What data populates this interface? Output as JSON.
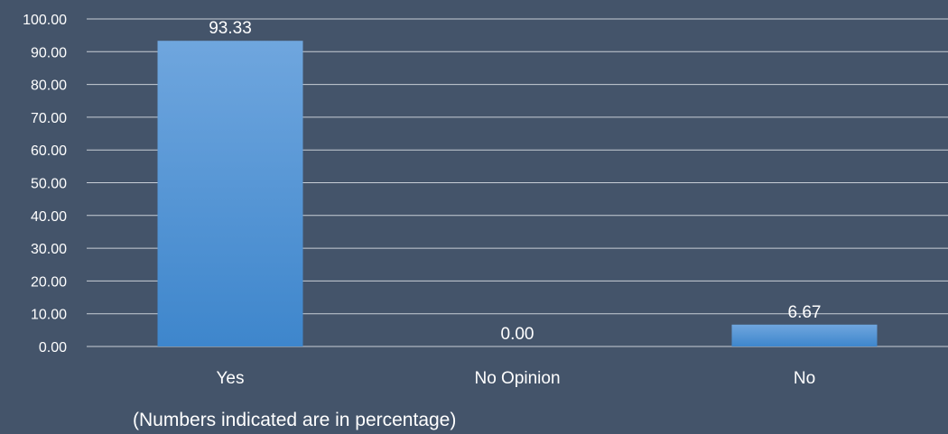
{
  "chart_data": {
    "type": "bar",
    "categories": [
      "Yes",
      "No Opinion",
      "No"
    ],
    "values": [
      93.33,
      0.0,
      6.67
    ],
    "data_labels": [
      "93.33",
      "0.00",
      "6.67"
    ],
    "ylim": [
      0,
      100
    ],
    "yticks": [
      "0.00",
      "10.00",
      "20.00",
      "30.00",
      "40.00",
      "50.00",
      "60.00",
      "70.00",
      "80.00",
      "90.00",
      "100.00"
    ],
    "title": "",
    "xlabel": "",
    "ylabel": "",
    "grid": true,
    "legend": "none",
    "note": "(Numbers indicated are in percentage)",
    "colors": {
      "background": "#44546a",
      "bar_top": "#6fa6de",
      "bar_bottom": "#3e86cc",
      "gridline": "#c8ced6",
      "text": "#ffffff"
    }
  }
}
